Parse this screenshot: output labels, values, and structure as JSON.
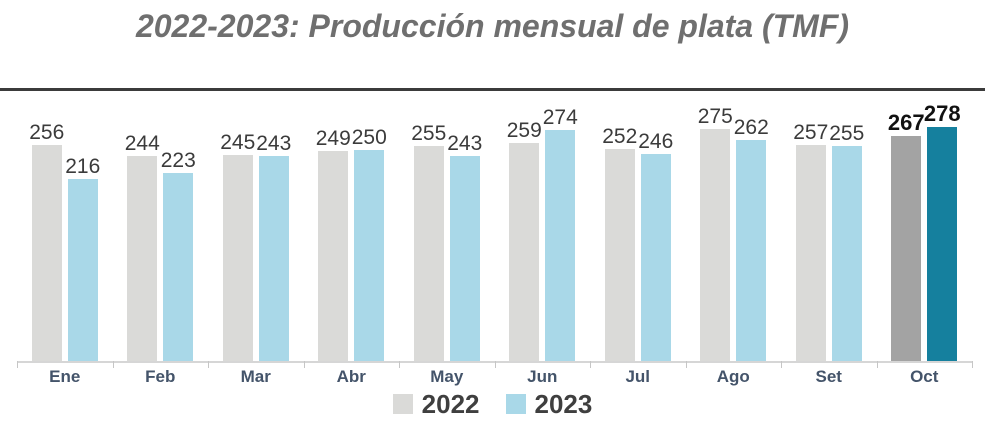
{
  "page": {
    "title": "2022-2023: Producción mensual de plata (TMF)"
  },
  "chart_data": {
    "type": "bar",
    "title": "2022-2023: Producción mensual de plata (TMF)",
    "categories": [
      "Ene",
      "Feb",
      "Mar",
      "Abr",
      "May",
      "Jun",
      "Jul",
      "Ago",
      "Set",
      "Oct"
    ],
    "series": [
      {
        "name": "2022",
        "values": [
          256,
          244,
          245,
          249,
          255,
          259,
          252,
          275,
          257,
          267
        ]
      },
      {
        "name": "2023",
        "values": [
          216,
          223,
          243,
          250,
          243,
          274,
          246,
          262,
          255,
          278
        ]
      }
    ],
    "unit": "TMF",
    "ylim": [
      0,
      278
    ],
    "grid": false,
    "legend_position": "bottom",
    "highlight_category": "Oct",
    "colors": {
      "bar_2022": "#dadad8",
      "bar_2023": "#a9d8e8",
      "bar_2022_highlight": "#a3a3a3",
      "bar_2023_highlight": "#15809e",
      "title_text": "#6f6f6f",
      "divider": "#3b3b3b",
      "value_label": "#3b3b3b",
      "value_label_highlight": "#111111",
      "axis_line": "#d6d6d6",
      "month_label": "#44546a",
      "legend_text": "#3f3f3f"
    }
  }
}
